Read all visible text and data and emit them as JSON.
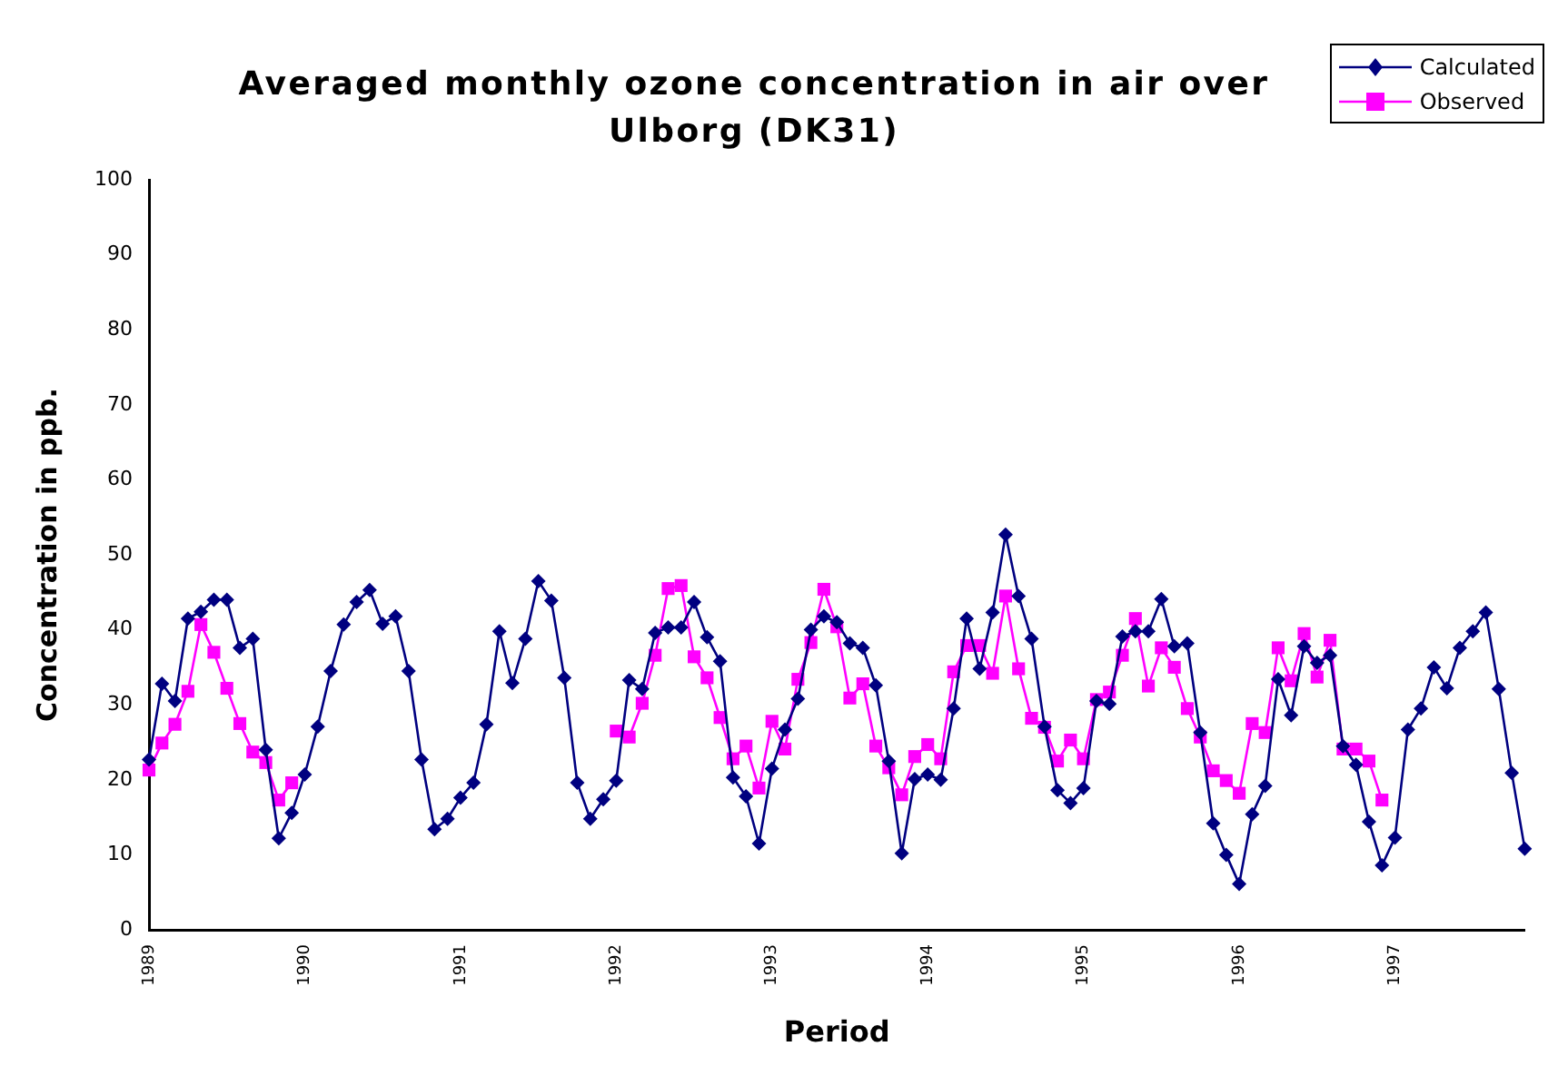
{
  "chart_data": {
    "type": "line",
    "title": "Averaged monthly ozone concentration in air over Ulborg (DK31)",
    "xlabel": "Period",
    "ylabel": "Concentration in ppb.",
    "categories": [
      "1989",
      null,
      null,
      null,
      null,
      null,
      null,
      null,
      null,
      null,
      null,
      null,
      "1990",
      null,
      null,
      null,
      null,
      null,
      null,
      null,
      null,
      null,
      null,
      null,
      "1991",
      null,
      null,
      null,
      null,
      null,
      null,
      null,
      null,
      null,
      null,
      null,
      "1992",
      null,
      null,
      null,
      null,
      null,
      null,
      null,
      null,
      null,
      null,
      null,
      "1993",
      null,
      null,
      null,
      null,
      null,
      null,
      null,
      null,
      null,
      null,
      null,
      "1994",
      null,
      null,
      null,
      null,
      null,
      null,
      null,
      null,
      null,
      null,
      null,
      "1995",
      null,
      null,
      null,
      null,
      null,
      null,
      null,
      null,
      null,
      null,
      null,
      "1996",
      null,
      null,
      null,
      null,
      null,
      null,
      null,
      null,
      null,
      null,
      null,
      "1997",
      null,
      null,
      null,
      null,
      null,
      null,
      null,
      null,
      null,
      null
    ],
    "series": [
      {
        "name": "Calculated",
        "color": "#000080",
        "marker": "diamond",
        "values": [
          22.7,
          32.8,
          30.5,
          41.5,
          42.4,
          44,
          44,
          37.6,
          38.8,
          24,
          12.2,
          15.6,
          20.7,
          27.1,
          34.5,
          40.7,
          43.7,
          45.3,
          40.8,
          41.8,
          34.5,
          22.7,
          13.4,
          14.8,
          17.6,
          19.6,
          27.4,
          39.8,
          32.9,
          38.8,
          46.5,
          43.9,
          33.6,
          19.6,
          14.8,
          17.4,
          19.9,
          33.3,
          32.1,
          39.6,
          40.3,
          40.3,
          43.7,
          39,
          35.8,
          20.3,
          17.8,
          11.5,
          21.5,
          26.7,
          30.8,
          40,
          41.8,
          41,
          38.2,
          37.6,
          32.6,
          22.5,
          10.2,
          20.1,
          20.7,
          20,
          29.5,
          41.5,
          34.8,
          42.3,
          52.7,
          44.5,
          38.8,
          27.1,
          18.6,
          16.9,
          18.9,
          30.5,
          30.1,
          39.1,
          39.8,
          39.8,
          44.1,
          37.8,
          38.2,
          26.3,
          14.2,
          10,
          6.1,
          15.4,
          19.2,
          33.4,
          28.6,
          37.8,
          35.6,
          36.6,
          24.5,
          22,
          14.4,
          8.6,
          12.3,
          26.7,
          29.5,
          35,
          32.2,
          37.6,
          39.8,
          42.3,
          32.1,
          20.9,
          10.8
        ]
      },
      {
        "name": "Observed",
        "color": "#ff00ff",
        "marker": "square",
        "values": [
          21.3,
          24.9,
          27.4,
          31.8,
          40.7,
          37,
          32.2,
          27.5,
          23.7,
          22.3,
          17.3,
          19.6,
          null,
          null,
          null,
          null,
          null,
          null,
          null,
          null,
          null,
          null,
          null,
          null,
          null,
          null,
          null,
          null,
          null,
          null,
          null,
          null,
          null,
          null,
          null,
          null,
          26.5,
          25.7,
          30.2,
          36.6,
          45.5,
          45.9,
          36.4,
          33.6,
          28.3,
          22.8,
          24.5,
          18.9,
          27.8,
          24.1,
          33.4,
          38.3,
          45.4,
          40.4,
          30.9,
          32.8,
          24.5,
          21.6,
          18,
          23.1,
          24.7,
          22.8,
          34.4,
          37.9,
          37.9,
          34.2,
          44.5,
          34.8,
          28.2,
          27,
          22.5,
          25.3,
          22.8,
          30.7,
          31.7,
          36.6,
          41.5,
          32.5,
          37.6,
          35,
          29.5,
          25.7,
          21.2,
          19.9,
          18.2,
          27.5,
          26.3,
          37.6,
          33.2,
          39.5,
          33.7,
          38.6,
          24.1,
          24.1,
          22.5,
          17.3,
          null,
          null,
          null,
          null,
          null,
          null,
          null,
          null,
          null,
          null,
          null
        ]
      }
    ],
    "ylim": [
      0,
      100
    ],
    "yticks": [
      0,
      10,
      20,
      30,
      40,
      50,
      60,
      70,
      80,
      90,
      100
    ],
    "legend": "top right",
    "line_style": "solid"
  }
}
